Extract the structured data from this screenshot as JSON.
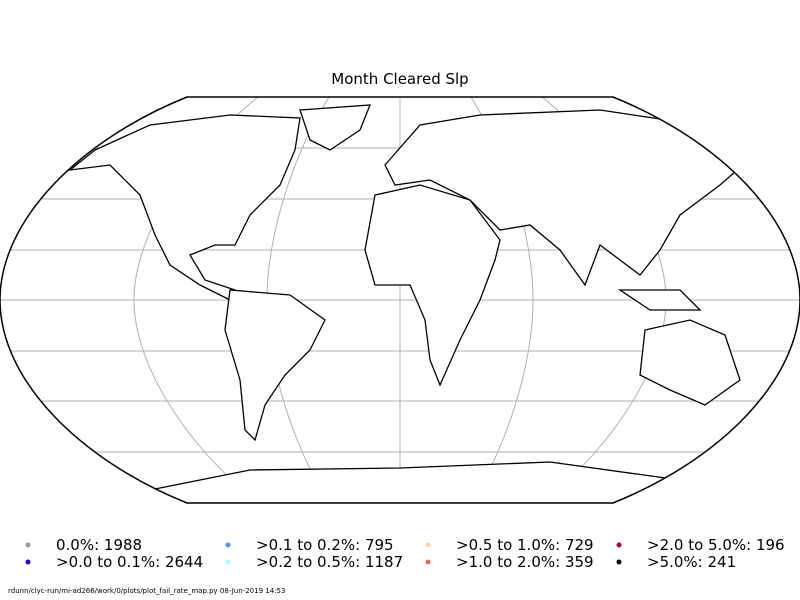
{
  "title": "Month Cleared Slp",
  "legend": [
    {
      "label": "0.0%: 1988",
      "color": "#999999"
    },
    {
      "label": ">0.0 to 0.1%: 2644",
      "color": "#2200dd"
    },
    {
      "label": ">0.1 to 0.2%: 795",
      "color": "#4499ff"
    },
    {
      "label": ">0.2 to 0.5%: 1187",
      "color": "#aaffff"
    },
    {
      "label": ">0.5 to 1.0%: 729",
      "color": "#ffd8a0"
    },
    {
      "label": ">1.0 to 2.0%: 359",
      "color": "#ee6655"
    },
    {
      "label": ">2.0 to 5.0%: 196",
      "color": "#aa0022"
    },
    {
      "label": ">5.0%: 241",
      "color": "#000000"
    }
  ],
  "footer": "rdunn/clyc-run/mi-ad266/work/0/plots/plot_fail_rate_map.py   08-Jun-2019 14:53"
}
